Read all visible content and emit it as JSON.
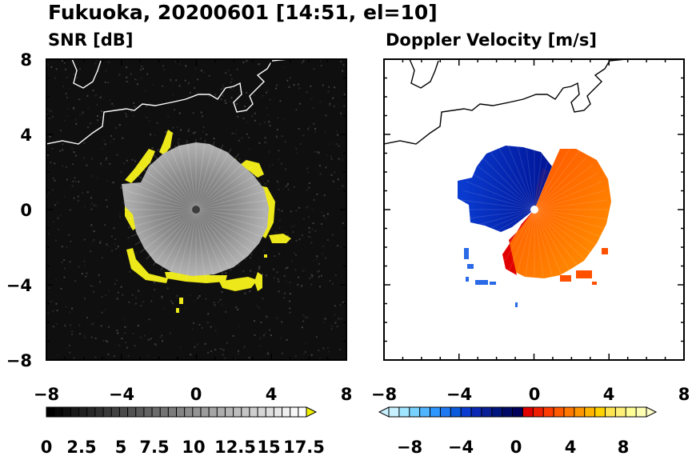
{
  "figure": {
    "title": "Fukuoka, 20200601 [14:51, el=10]"
  },
  "chart_data": [
    {
      "type": "heatmap",
      "title": "SNR [dB]",
      "xlim": [
        -8,
        8
      ],
      "ylim": [
        -8,
        8
      ],
      "x_ticks": [
        "−8",
        "−4",
        "0",
        "4",
        "8"
      ],
      "y_ticks": [
        "8",
        "4",
        "0",
        "−4",
        "−8"
      ],
      "colorbar": {
        "ticks": [
          "0",
          "2.5",
          "5",
          "7.5",
          "10",
          "12.5",
          "15",
          "17.5"
        ],
        "range": [
          0,
          20
        ],
        "extend": "max",
        "colors": [
          "#000000",
          "#ffffff",
          "#f0f000"
        ]
      }
    },
    {
      "type": "heatmap",
      "title": "Doppler Velocity [m/s]",
      "xlim": [
        -8,
        8
      ],
      "ylim": [
        -8,
        8
      ],
      "x_ticks": [
        "−8",
        "−4",
        "0",
        "4",
        "8"
      ],
      "y_ticks": [
        "8",
        "4",
        "0",
        "−4",
        "−8"
      ],
      "colorbar": {
        "ticks": [
          "−8",
          "−4",
          "0",
          "4",
          "8"
        ],
        "range": [
          -10,
          10
        ],
        "extend": "both",
        "colors": [
          "#c8f0ff",
          "#0a3cd2",
          "#00005a",
          "#e10000",
          "#ff7800",
          "#ffff96"
        ]
      }
    }
  ]
}
